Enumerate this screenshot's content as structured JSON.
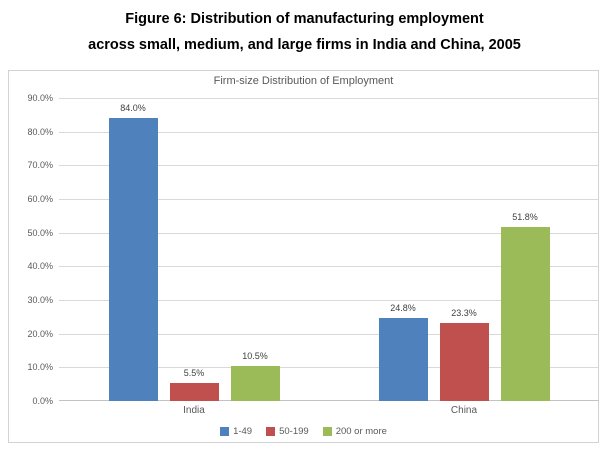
{
  "figure_title": {
    "line1": "Figure 6: Distribution of manufacturing employment",
    "line2": "across small, medium, and large firms in India and China, 2005"
  },
  "chart_data": {
    "type": "bar",
    "title": "Firm-size Distribution of Employment",
    "categories": [
      "India",
      "China"
    ],
    "series": [
      {
        "name": "1-49",
        "color": "#4F81BD",
        "values": [
          84.0,
          24.8
        ],
        "labels": [
          "84.0%",
          "24.8%"
        ]
      },
      {
        "name": "50-199",
        "color": "#C0504D",
        "values": [
          5.5,
          23.3
        ],
        "labels": [
          "5.5%",
          "23.3%"
        ]
      },
      {
        "name": "200 or more",
        "color": "#9BBB59",
        "values": [
          10.5,
          51.8
        ],
        "labels": [
          "10.5%",
          "51.8%"
        ]
      }
    ],
    "xlabel": "",
    "ylabel": "",
    "ylim": [
      0,
      90
    ],
    "ytick_step": 10,
    "ytick_labels": [
      "0.0%",
      "10.0%",
      "20.0%",
      "30.0%",
      "40.0%",
      "50.0%",
      "60.0%",
      "70.0%",
      "80.0%",
      "90.0%"
    ],
    "grid": true,
    "legend_position": "bottom",
    "colors": {
      "gridline": "#D9D9D9",
      "axis_text": "#595959",
      "data_label_text": "#404040",
      "panel_border": "#D3D3D3"
    }
  }
}
